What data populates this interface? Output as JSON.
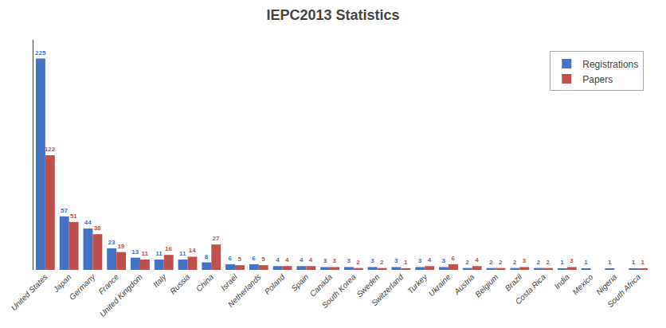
{
  "chart_data": {
    "type": "bar",
    "title": "IEPC2013 Statistics",
    "categories": [
      "United States",
      "Japan",
      "Germany",
      "France",
      "United Kingdom",
      "Italy",
      "Russia",
      "China",
      "Israel",
      "Netherlands",
      "Poland",
      "Spain",
      "Canada",
      "South Korea",
      "Sweden",
      "Switzerland",
      "Turkey",
      "Ukraine",
      "Austria",
      "Belgium",
      "Brazil",
      "Costa Rica",
      "India",
      "Mexico",
      "Nigeria",
      "South Africa"
    ],
    "series": [
      {
        "name": "Registrations",
        "color": "#4472C4",
        "values": [
          225,
          57,
          44,
          23,
          13,
          11,
          11,
          8,
          6,
          6,
          4,
          4,
          3,
          3,
          3,
          3,
          3,
          3,
          2,
          2,
          2,
          2,
          1,
          1,
          1,
          1
        ]
      },
      {
        "name": "Papers",
        "color": "#C0504D",
        "values": [
          122,
          51,
          38,
          19,
          11,
          16,
          14,
          27,
          5,
          5,
          4,
          4,
          3,
          2,
          2,
          1,
          4,
          6,
          4,
          2,
          3,
          2,
          3,
          0,
          0,
          1
        ],
        "value_labels": [
          "122",
          "51",
          "38",
          "19",
          "11",
          "16",
          "14",
          "27",
          "5",
          "5",
          "4",
          "4",
          "3",
          "2",
          "2",
          "1",
          "4",
          "6",
          "4",
          "2",
          "3",
          "2",
          "3",
          null,
          null,
          "1"
        ]
      }
    ],
    "ylim": [
      0,
      245
    ],
    "grid": false,
    "legend": "upper right",
    "data_labels": true,
    "tick_labels": "x"
  }
}
